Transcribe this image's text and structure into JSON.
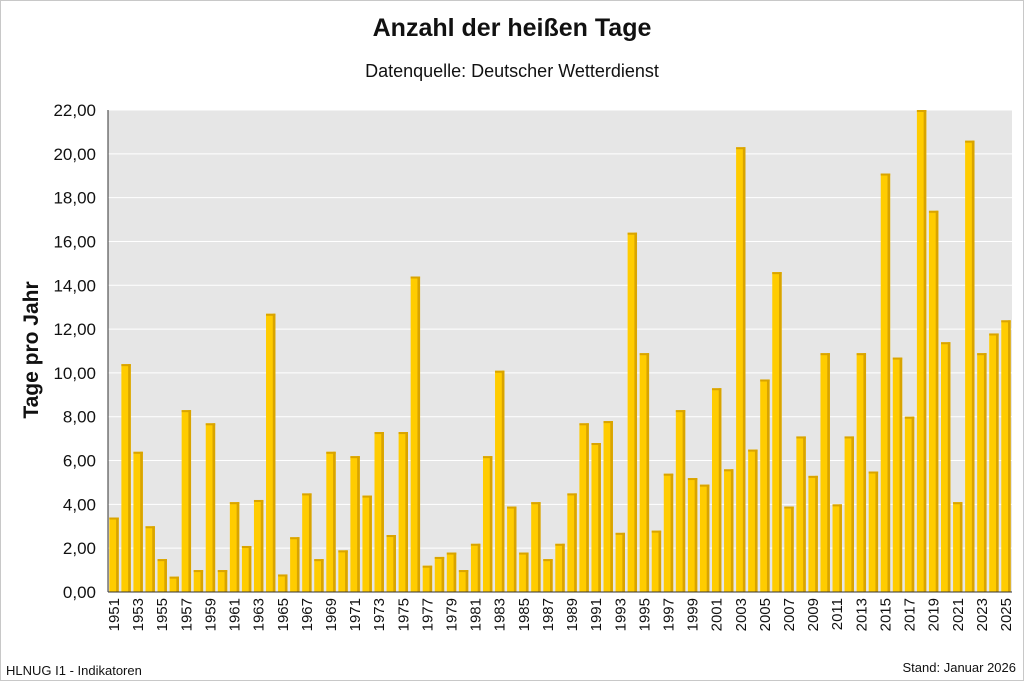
{
  "chart_data": {
    "type": "bar",
    "title": "Anzahl der heißen Tage",
    "subtitle": "Datenquelle: Deutscher Wetterdienst",
    "ylabel": "Tage pro Jahr",
    "xlabel": "",
    "ylim": [
      0,
      22
    ],
    "yticks": [
      "0,00",
      "2,00",
      "4,00",
      "6,00",
      "8,00",
      "10,00",
      "12,00",
      "14,00",
      "16,00",
      "18,00",
      "20,00",
      "22,00"
    ],
    "grid": true,
    "categories": [
      "1951",
      "1952",
      "1953",
      "1954",
      "1955",
      "1956",
      "1957",
      "1958",
      "1959",
      "1960",
      "1961",
      "1962",
      "1963",
      "1964",
      "1965",
      "1966",
      "1967",
      "1968",
      "1969",
      "1970",
      "1971",
      "1972",
      "1973",
      "1974",
      "1975",
      "1976",
      "1977",
      "1978",
      "1979",
      "1980",
      "1981",
      "1982",
      "1983",
      "1984",
      "1985",
      "1986",
      "1987",
      "1988",
      "1989",
      "1990",
      "1991",
      "1992",
      "1993",
      "1994",
      "1995",
      "1996",
      "1997",
      "1998",
      "1999",
      "2000",
      "2001",
      "2002",
      "2003",
      "2004",
      "2005",
      "2006",
      "2007",
      "2008",
      "2009",
      "2010",
      "2011",
      "2012",
      "2013",
      "2014",
      "2015",
      "2016",
      "2017",
      "2018",
      "2019",
      "2020",
      "2021",
      "2022",
      "2023",
      "2024",
      "2025"
    ],
    "values": [
      3.4,
      10.4,
      6.4,
      3.0,
      1.5,
      0.7,
      8.3,
      1.0,
      7.7,
      1.0,
      4.1,
      2.1,
      4.2,
      12.7,
      0.8,
      2.5,
      4.5,
      1.5,
      6.4,
      1.9,
      6.2,
      4.4,
      7.3,
      2.6,
      7.3,
      14.4,
      1.2,
      1.6,
      1.8,
      1.0,
      2.2,
      6.2,
      10.1,
      3.9,
      1.8,
      4.1,
      1.5,
      2.2,
      4.5,
      7.7,
      6.8,
      7.8,
      2.7,
      16.4,
      10.9,
      2.8,
      5.4,
      8.3,
      5.2,
      4.9,
      9.3,
      5.6,
      20.3,
      6.5,
      9.7,
      14.6,
      3.9,
      7.1,
      5.3,
      10.9,
      4.0,
      7.1,
      10.9,
      5.5,
      19.1,
      10.7,
      8.0,
      22.1,
      17.4,
      11.4,
      4.1,
      20.6,
      10.9,
      11.8,
      12.4
    ],
    "colors": {
      "bar": "#ffcc00",
      "bar_shade": "#d9a400",
      "plot_bg": "#e6e6e6",
      "grid": "#ffffff"
    }
  },
  "footer": {
    "left": "HLNUG I1 - Indikatoren",
    "right": "Stand: Januar 2026"
  }
}
